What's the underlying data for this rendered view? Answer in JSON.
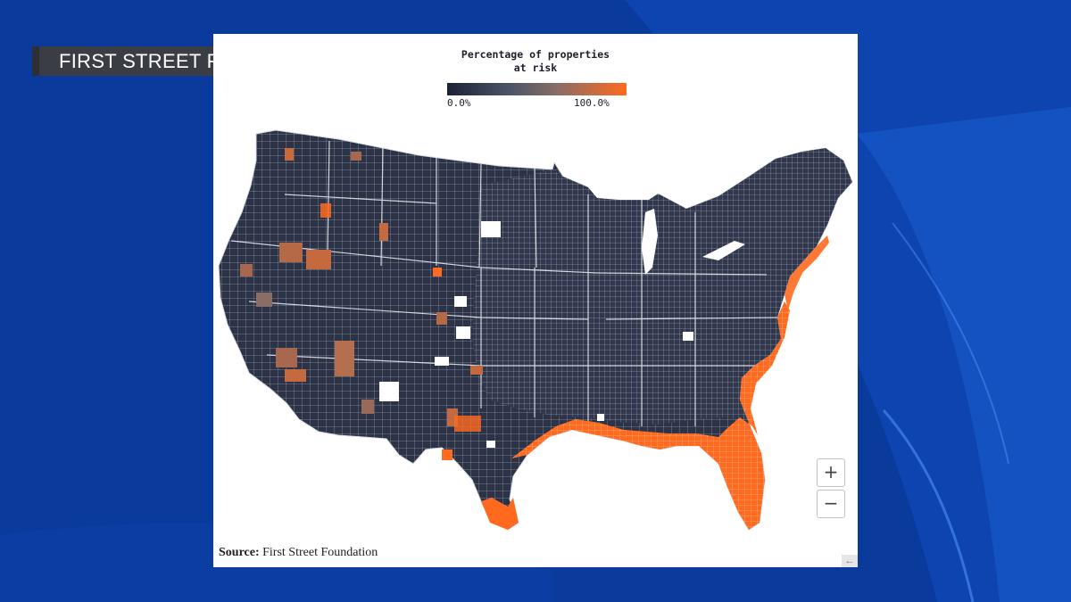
{
  "chyron": {
    "text": "FIRST STREET FOUNDATION"
  },
  "legend": {
    "title_line1": "Percentage of properties",
    "title_line2": "at risk",
    "min_label": "0.0%",
    "max_label": "100.0%",
    "colors": {
      "low": "#1c2236",
      "mid": "#4c5468",
      "midhigh": "#8a6d66",
      "high": "#ff6a1f"
    }
  },
  "map": {
    "subject": "contiguous United States counties choropleth",
    "colors": {
      "land": "#2d3347",
      "border": "#d9dde6",
      "risk": "#ff6a1f",
      "risk_mid": "#9a6a58",
      "no_data": "#ffffff"
    }
  },
  "controls": {
    "zoom_in": "+",
    "zoom_out": "−",
    "corner_glyph": "←"
  },
  "source": {
    "label": "Source:",
    "text": " First Street Foundation"
  },
  "background": {
    "color": "#0a3a9c",
    "accent": "#1f63d6"
  }
}
